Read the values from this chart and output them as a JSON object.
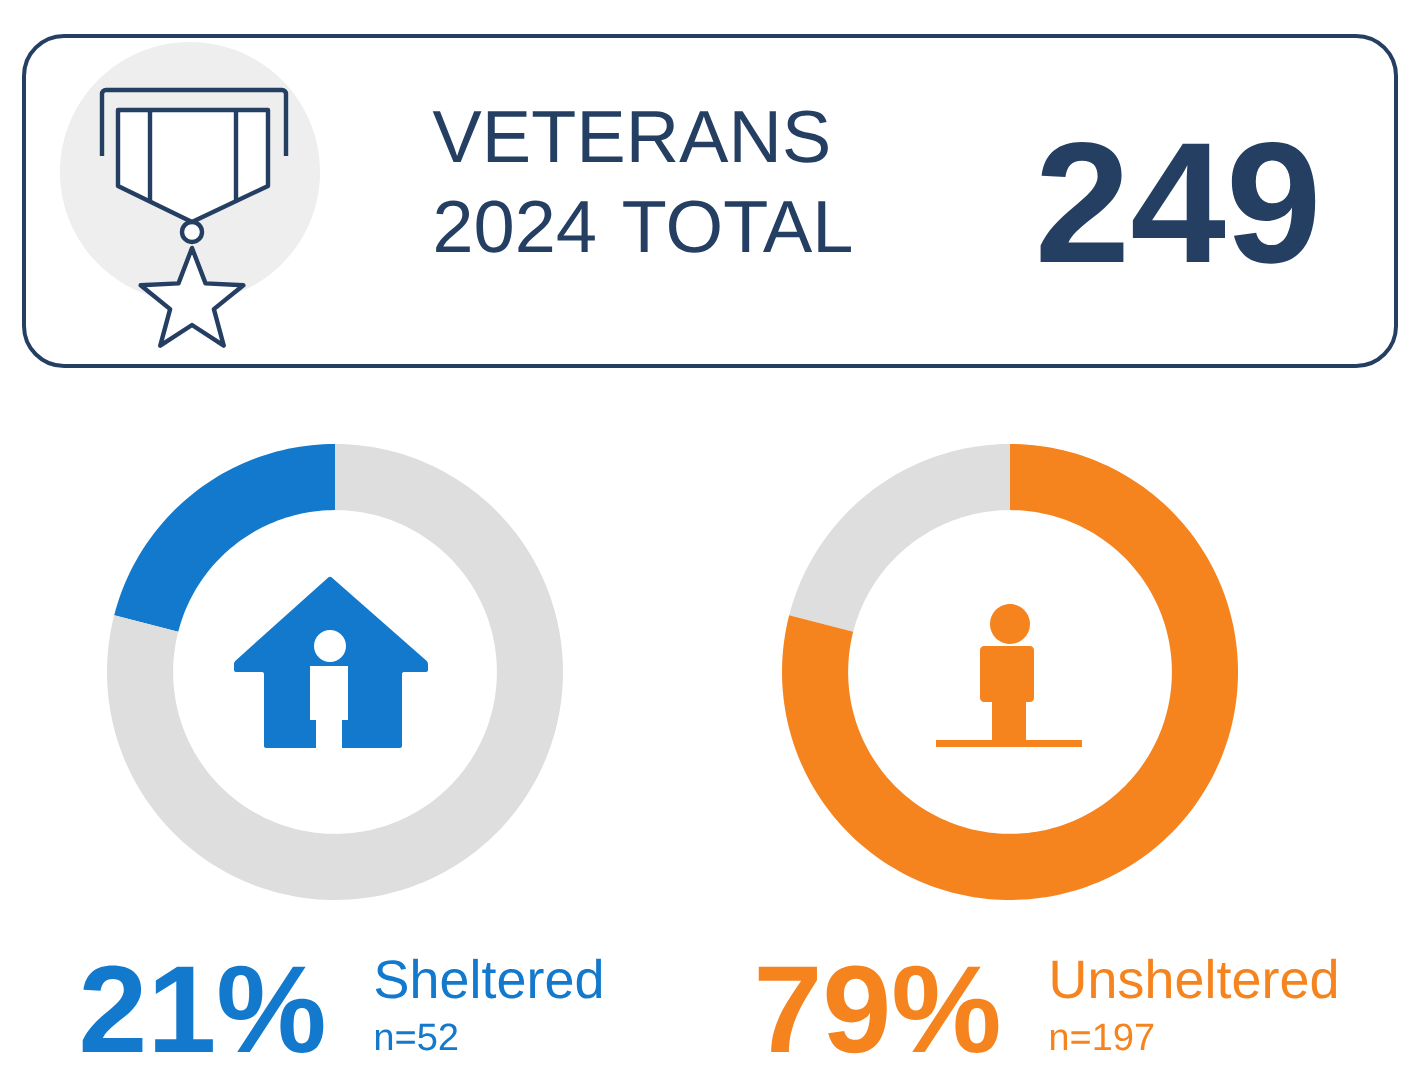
{
  "chart_data": [
    {
      "type": "other",
      "title": "VETERANS 2024 TOTAL",
      "annotations": [
        "249"
      ]
    },
    {
      "type": "donut",
      "title": "Sheltered",
      "categories": [
        null,
        null
      ],
      "values": [
        21,
        79
      ],
      "colors": [
        "#1279cc",
        "#dedede"
      ],
      "annotations": [
        "21%",
        "n=52"
      ]
    },
    {
      "type": "donut",
      "title": "Unsheltered",
      "categories": [
        null,
        null
      ],
      "values": [
        21,
        79
      ],
      "colors": [
        "#dedede",
        "#f5841f"
      ],
      "annotations": [
        "79%",
        "n=197"
      ]
    }
  ]
}
